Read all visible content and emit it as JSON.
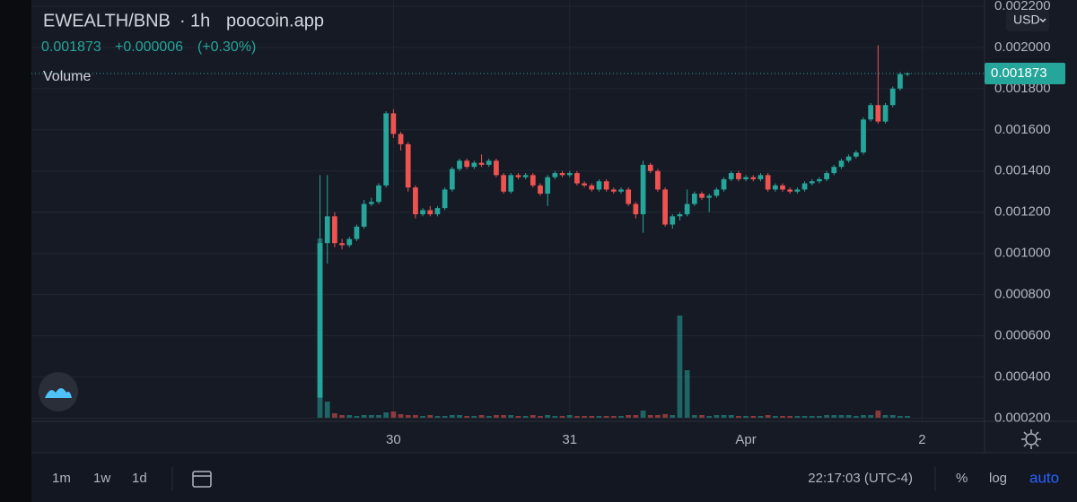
{
  "header": {
    "symbol": "EWEALTH/BNB",
    "separator": "·",
    "interval": "1h",
    "source": "poocoin.app",
    "price": "0.001873",
    "change": "+0.000006",
    "change_percent": "(+0.30%)",
    "volume_label": "Volume",
    "currency": "USD"
  },
  "chart_data": {
    "type": "candlestick",
    "up_color": "#26a69a",
    "down_color": "#ef5350",
    "grid": true,
    "open": [
      0.0003,
      0.00105,
      0.00118,
      0.00105,
      0.00104,
      0.00107,
      0.00113,
      0.00124,
      0.00125,
      0.00133,
      0.00168,
      0.00158,
      0.00153,
      0.00132,
      0.00119,
      0.00121,
      0.00119,
      0.00122,
      0.00131,
      0.00141,
      0.00145,
      0.00142,
      0.00144,
      0.00143,
      0.00145,
      0.00138,
      0.0013,
      0.00138,
      0.00137,
      0.00138,
      0.00133,
      0.00129,
      0.00137,
      0.00139,
      0.00138,
      0.00139,
      0.00134,
      0.00133,
      0.00131,
      0.00135,
      0.00131,
      0.0013,
      0.00131,
      0.00124,
      0.00119,
      0.00143,
      0.0014,
      0.00131,
      0.00114,
      0.00118,
      0.00119,
      0.00124,
      0.00129,
      0.00127,
      0.00128,
      0.00131,
      0.00136,
      0.00139,
      0.00136,
      0.00137,
      0.00136,
      0.00138,
      0.00131,
      0.00133,
      0.00131,
      0.0013,
      0.00131,
      0.00134,
      0.00135,
      0.00136,
      0.00139,
      0.00142,
      0.00145,
      0.00147,
      0.00149,
      0.00165,
      0.00172,
      0.00164,
      0.00172,
      0.0018,
      0.00187
    ],
    "high": [
      0.00138,
      0.00138,
      0.0012,
      0.00107,
      0.00108,
      0.00114,
      0.00126,
      0.00127,
      0.00134,
      0.00169,
      0.0017,
      0.00159,
      0.00154,
      0.00133,
      0.00122,
      0.00123,
      0.00123,
      0.00132,
      0.00142,
      0.00146,
      0.00146,
      0.00145,
      0.00148,
      0.00146,
      0.00146,
      0.00139,
      0.00139,
      0.00139,
      0.00139,
      0.00139,
      0.00134,
      0.00138,
      0.0014,
      0.0014,
      0.0014,
      0.0014,
      0.00135,
      0.00134,
      0.00136,
      0.00136,
      0.00132,
      0.00132,
      0.00132,
      0.00125,
      0.00145,
      0.00144,
      0.00141,
      0.00132,
      0.00119,
      0.0012,
      0.00131,
      0.0013,
      0.0013,
      0.00129,
      0.00132,
      0.00137,
      0.0014,
      0.0014,
      0.00138,
      0.00138,
      0.00139,
      0.00139,
      0.00134,
      0.00134,
      0.00132,
      0.00132,
      0.00135,
      0.00136,
      0.00137,
      0.0014,
      0.00143,
      0.00146,
      0.00148,
      0.0015,
      0.00166,
      0.00173,
      0.00201,
      0.00173,
      0.00181,
      0.00188,
      0.00188
    ],
    "low": [
      0.0003,
      0.00095,
      0.00103,
      0.00102,
      0.00103,
      0.00106,
      0.00112,
      0.00123,
      0.00124,
      0.00132,
      0.00156,
      0.0015,
      0.0013,
      0.00117,
      0.00118,
      0.00118,
      0.00118,
      0.00121,
      0.0013,
      0.0014,
      0.00141,
      0.00141,
      0.00142,
      0.00142,
      0.00137,
      0.00129,
      0.00129,
      0.00136,
      0.00136,
      0.00132,
      0.00128,
      0.00123,
      0.00136,
      0.00137,
      0.00137,
      0.00133,
      0.00132,
      0.0013,
      0.0013,
      0.0013,
      0.00129,
      0.00129,
      0.00123,
      0.00117,
      0.0011,
      0.00139,
      0.0013,
      0.00113,
      0.00112,
      0.00116,
      0.00118,
      0.00123,
      0.00126,
      0.0012,
      0.00127,
      0.0013,
      0.00135,
      0.00135,
      0.00135,
      0.00135,
      0.00135,
      0.0013,
      0.0013,
      0.0013,
      0.00129,
      0.00129,
      0.0013,
      0.00133,
      0.00134,
      0.00135,
      0.00138,
      0.00141,
      0.00144,
      0.00146,
      0.00148,
      0.00164,
      0.00163,
      0.00163,
      0.00171,
      0.00179,
      0.00186
    ],
    "close": [
      0.00105,
      0.00118,
      0.00105,
      0.00104,
      0.00107,
      0.00113,
      0.00124,
      0.00125,
      0.00133,
      0.00168,
      0.00158,
      0.00153,
      0.00132,
      0.00119,
      0.00121,
      0.00119,
      0.00122,
      0.00131,
      0.00141,
      0.00145,
      0.00142,
      0.00144,
      0.00143,
      0.00145,
      0.00138,
      0.0013,
      0.00138,
      0.00137,
      0.00138,
      0.00133,
      0.00129,
      0.00137,
      0.00139,
      0.00138,
      0.00139,
      0.00134,
      0.00133,
      0.00131,
      0.00135,
      0.00131,
      0.0013,
      0.00131,
      0.00124,
      0.00119,
      0.00143,
      0.0014,
      0.00131,
      0.00114,
      0.00118,
      0.00119,
      0.00124,
      0.00129,
      0.00127,
      0.00128,
      0.00131,
      0.00136,
      0.00139,
      0.00136,
      0.00137,
      0.00136,
      0.00138,
      0.00131,
      0.00133,
      0.00131,
      0.0013,
      0.00131,
      0.00134,
      0.00135,
      0.00136,
      0.00139,
      0.00142,
      0.00145,
      0.00147,
      0.00149,
      0.00165,
      0.00172,
      0.00164,
      0.00172,
      0.0018,
      0.00187,
      0.001873
    ],
    "volume": [
      200,
      18,
      5,
      3,
      3,
      2,
      3,
      3,
      3,
      6,
      7,
      4,
      3,
      3,
      2,
      3,
      2,
      2,
      3,
      3,
      2,
      2,
      3,
      2,
      3,
      3,
      3,
      2,
      2,
      3,
      2,
      3,
      2,
      2,
      3,
      2,
      2,
      2,
      2,
      2,
      2,
      2,
      3,
      3,
      8,
      3,
      3,
      4,
      3,
      114,
      53,
      3,
      3,
      2,
      3,
      3,
      3,
      2,
      2,
      2,
      2,
      3,
      2,
      2,
      2,
      2,
      2,
      2,
      2,
      3,
      3,
      3,
      3,
      2,
      3,
      3,
      8,
      3,
      3,
      2,
      2
    ],
    "last_price": 0.001873,
    "last_price_label": "0.001873",
    "ylim": [
      0.000185,
      0.00223
    ],
    "yticks": [
      {
        "value": 0.0002,
        "label": "0.000200"
      },
      {
        "value": 0.0004,
        "label": "0.000400"
      },
      {
        "value": 0.0006,
        "label": "0.000600"
      },
      {
        "value": 0.0008,
        "label": "0.000800"
      },
      {
        "value": 0.001,
        "label": "0.001000"
      },
      {
        "value": 0.0012,
        "label": "0.001200"
      },
      {
        "value": 0.0014,
        "label": "0.001400"
      },
      {
        "value": 0.0016,
        "label": "0.001600"
      },
      {
        "value": 0.0018,
        "label": "0.001800"
      },
      {
        "value": 0.002,
        "label": "0.002000"
      },
      {
        "value": 0.0022,
        "label": "0.002200"
      }
    ],
    "xlim": [
      -39.3,
      90.5
    ],
    "xticks": [
      {
        "value": 10,
        "label": "30"
      },
      {
        "value": 34,
        "label": "31"
      },
      {
        "value": 58,
        "label": "Apr"
      },
      {
        "value": 82,
        "label": "2"
      }
    ]
  },
  "toolbar": {
    "ranges": [
      "1m",
      "1w",
      "1d"
    ],
    "time": "22:17:03 (UTC-4)",
    "percent": "%",
    "log": "log",
    "auto": "auto"
  }
}
